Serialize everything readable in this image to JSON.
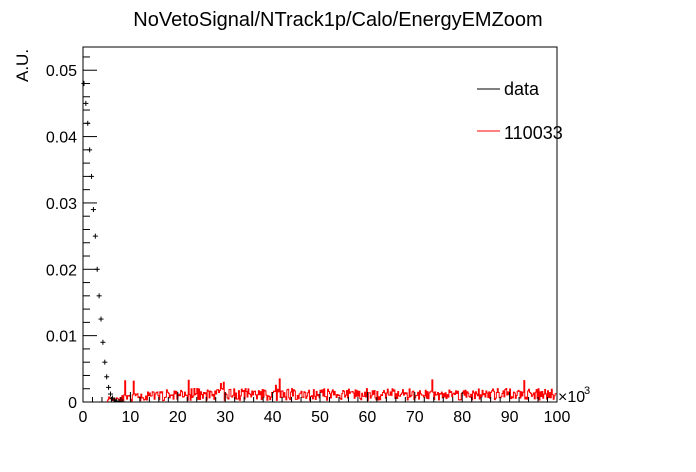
{
  "chart_data": {
    "type": "histogram",
    "title": "NoVetoSignal/NTrack1p/Calo/EnergyEMZoom",
    "xlabel": "",
    "ylabel": "A.U.",
    "x_multiplier_label": "×10",
    "x_multiplier_exponent": "3",
    "xlim": [
      0,
      100
    ],
    "ylim": [
      0,
      0.0535
    ],
    "x_ticks": [
      0,
      10,
      20,
      30,
      40,
      50,
      60,
      70,
      80,
      90,
      100
    ],
    "x_tick_labels": [
      "0",
      "10",
      "20",
      "30",
      "40",
      "50",
      "60",
      "70",
      "80",
      "90",
      "100"
    ],
    "y_ticks": [
      0,
      0.01,
      0.02,
      0.03,
      0.04,
      0.05
    ],
    "y_tick_labels": [
      "0",
      "0.01",
      "0.02",
      "0.03",
      "0.04",
      "0.05"
    ],
    "grid": false,
    "legend_position": "top-right",
    "series": [
      {
        "name": "data",
        "color": "#000000",
        "style": "points-with-errorbars",
        "x": [
          0.2,
          0.6,
          1.0,
          1.4,
          1.8,
          2.2,
          2.6,
          3.0,
          3.4,
          3.8,
          4.2,
          4.6,
          5.0,
          5.4,
          5.8,
          6.2,
          6.6,
          7.0,
          7.6,
          8.4
        ],
        "values": [
          0.048,
          0.045,
          0.042,
          0.038,
          0.034,
          0.029,
          0.025,
          0.02,
          0.016,
          0.0125,
          0.009,
          0.006,
          0.0038,
          0.0022,
          0.0012,
          0.0006,
          0.0003,
          0.00015,
          7e-05,
          3e-05
        ]
      },
      {
        "name": "110033",
        "color": "#ff0000",
        "style": "noisy-histogram",
        "x_range": [
          5,
          100
        ],
        "typical_value": 0.0012,
        "max_value": 0.0035
      }
    ]
  }
}
